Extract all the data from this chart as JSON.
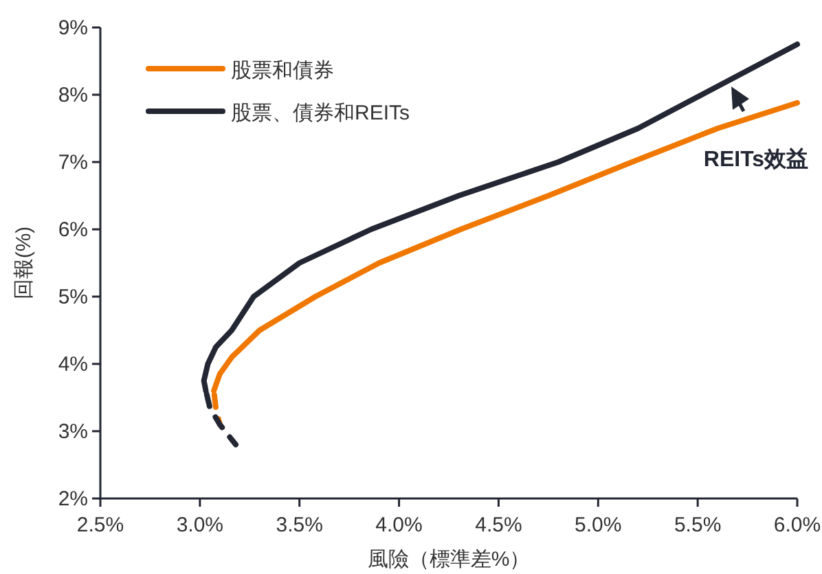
{
  "chart_data": {
    "type": "line",
    "xlabel": "風險（標準差%）",
    "ylabel": "回報(%)",
    "xlim": [
      2.5,
      6.0
    ],
    "ylim": [
      2,
      9
    ],
    "xticks": [
      {
        "value": 2.5,
        "label": "2.5%"
      },
      {
        "value": 3.0,
        "label": "3.0%"
      },
      {
        "value": 3.5,
        "label": "3.5%"
      },
      {
        "value": 4.0,
        "label": "4.0%"
      },
      {
        "value": 4.5,
        "label": "4.5%"
      },
      {
        "value": 5.0,
        "label": "5.0%"
      },
      {
        "value": 5.5,
        "label": "5.5%"
      },
      {
        "value": 6.0,
        "label": "6.0%"
      }
    ],
    "yticks": [
      {
        "value": 2,
        "label": "2%"
      },
      {
        "value": 3,
        "label": "3%"
      },
      {
        "value": 4,
        "label": "4%"
      },
      {
        "value": 5,
        "label": "5%"
      },
      {
        "value": 6,
        "label": "6%"
      },
      {
        "value": 7,
        "label": "7%"
      },
      {
        "value": 8,
        "label": "8%"
      },
      {
        "value": 9,
        "label": "9%"
      }
    ],
    "grid": false,
    "legend": "top left",
    "marker": "none",
    "series": [
      {
        "name": "股票和債券",
        "color": "#f07800",
        "line_style": "solid",
        "x": [
          3.07,
          3.1,
          3.16,
          3.3,
          3.58,
          3.9,
          4.31,
          4.75,
          5.17,
          5.6,
          6.0
        ],
        "values": [
          3.6,
          3.85,
          4.1,
          4.5,
          5.0,
          5.5,
          6.0,
          6.5,
          7.0,
          7.5,
          7.88
        ]
      },
      {
        "name": "股票、債券和REITs",
        "color": "#232733",
        "line_style": "solid",
        "x": [
          3.03,
          3.02,
          3.04,
          3.08,
          3.16,
          3.27,
          3.5,
          3.86,
          4.3,
          4.8,
          5.2,
          5.52,
          6.0
        ],
        "values": [
          3.6,
          3.75,
          4.0,
          4.25,
          4.5,
          5.0,
          5.5,
          6.0,
          6.5,
          7.0,
          7.5,
          8.0,
          8.75
        ]
      },
      {
        "color": "#f07800",
        "line_style": "dashed",
        "x": [
          3.07,
          3.08,
          3.1
        ],
        "values": [
          3.6,
          3.35,
          3.1
        ]
      },
      {
        "color": "#232733",
        "line_style": "dashed",
        "x": [
          3.03,
          3.05,
          3.1,
          3.18
        ],
        "values": [
          3.6,
          3.35,
          3.1,
          2.8
        ]
      }
    ],
    "annotations": [
      "**REITs效益**"
    ]
  }
}
